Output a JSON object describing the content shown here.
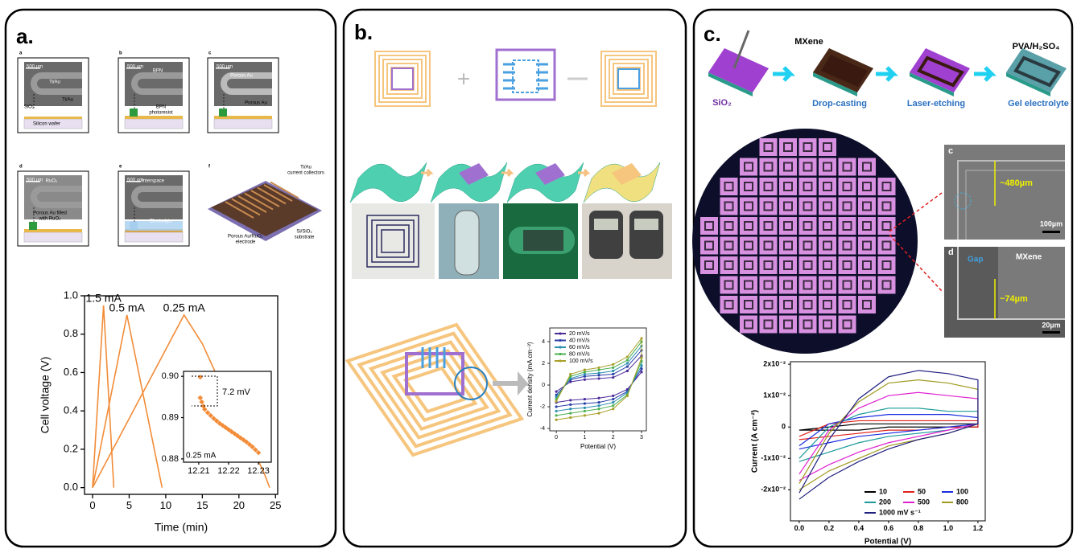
{
  "panels": {
    "a": {
      "label": "a.",
      "texts": [
        "a",
        "b",
        "c",
        "d",
        "e",
        "f",
        "500 µm",
        "Ti/Au",
        "SiO₂",
        "Ti/Au",
        "Silicon wafer",
        "500 µm",
        "BPN",
        "BPN",
        "photoresist",
        "500 µm",
        "Porous Au",
        "Porous Au",
        "500 µm",
        "RuO₂",
        "Porous Au filled",
        "with RuO₂",
        "500 µm",
        "Interspace",
        "Electrolyte",
        "Ti/Au",
        "current collectors",
        "Porous Au/RuO₂",
        "electrode",
        "Si/SiO₂",
        "substrate"
      ]
    },
    "b": {
      "label": "b."
    },
    "c": {
      "label": "c.",
      "texts": [
        "MXene",
        "SiO₂",
        "Drop-casting",
        "Laser-etching",
        "PVA/H₂SO₄",
        "Gel electrolyte",
        "c",
        "~480µm",
        "100µm",
        "d",
        "Gap",
        "MXene",
        "~74µm",
        "20µm"
      ]
    }
  },
  "chart_data": [
    {
      "type": "line",
      "xlabel": "Time (min)",
      "ylabel": "Cell voltage (V)",
      "xlim": [
        -1.1,
        25.3
      ],
      "xticks": [
        0,
        5,
        10,
        15,
        20,
        25
      ],
      "ylim": [
        -0.035,
        1.0
      ],
      "yticks": [
        {
          "value": 0,
          "label": "0.0"
        },
        0.2,
        0.4,
        0.6,
        0.8,
        {
          "value": 1.0,
          "label": "1.0"
        }
      ],
      "series": [
        {
          "name": "1.5 mA",
          "color": "#f28c38",
          "x": [
            0,
            1.5,
            2.9
          ],
          "values": [
            0,
            0.95,
            0
          ]
        },
        {
          "name": "0.5 mA",
          "color": "#f28c38",
          "x": [
            0,
            4.7,
            9.5
          ],
          "values": [
            0,
            0.9,
            0
          ]
        },
        {
          "name": "0.25 mA",
          "color": "#f28c38",
          "x": [
            0,
            12.5,
            15,
            18,
            21,
            23.5,
            24.2
          ],
          "values": [
            0,
            0.9,
            0.75,
            0.5,
            0.28,
            0.07,
            0
          ]
        }
      ]
    },
    {
      "type": "scatter",
      "color": "#f28c38",
      "xlim": [
        12.2049,
        12.2343
      ],
      "xticks": [
        12.21,
        12.22,
        12.23
      ],
      "ylim": [
        0.8792,
        0.9012
      ],
      "yticks": [
        0.88,
        0.89,
        {
          "value": 0.9,
          "label": "0.90"
        }
      ],
      "annotations": [
        "7.2 mV",
        "0.25 mA"
      ],
      "x": [
        12.2105,
        12.2105,
        12.211,
        12.2115,
        12.212,
        12.213,
        12.214,
        12.215,
        12.216,
        12.217,
        12.218,
        12.219,
        12.22,
        12.221,
        12.222,
        12.223,
        12.224,
        12.225,
        12.226,
        12.227,
        12.228,
        12.229,
        12.23
      ],
      "values": [
        0.8998,
        0.8948,
        0.8938,
        0.8928,
        0.892,
        0.8912,
        0.8905,
        0.8898,
        0.8892,
        0.8886,
        0.8881,
        0.8876,
        0.8871,
        0.8866,
        0.8861,
        0.8856,
        0.8851,
        0.8846,
        0.8841,
        0.8835,
        0.8829,
        0.8822,
        0.8815
      ]
    },
    {
      "type": "line",
      "xlabel": "Potential (V)",
      "ylabel": "Current density (mA cm⁻²)",
      "legend": "upper left",
      "markers": true,
      "xlim": [
        -0.23,
        3.17
      ],
      "xticks": [
        0,
        1,
        2,
        3
      ],
      "ylim": [
        -4.22,
        5.26
      ],
      "yticks": [
        -4,
        -2,
        0,
        2,
        4
      ],
      "x": [
        0,
        0.5,
        1,
        1.5,
        2,
        2.5,
        3,
        3,
        2.5,
        2,
        1.5,
        1,
        0.5,
        0
      ],
      "series": [
        {
          "name": "20 mV/s",
          "color": "#4b2a9a",
          "values": [
            -0.6,
            0.3,
            0.5,
            0.6,
            0.7,
            1.3,
            2.7,
            1.2,
            -0.4,
            -1.0,
            -1.2,
            -1.3,
            -1.4,
            -1.6
          ]
        },
        {
          "name": "40 mV/s",
          "color": "#2a3fa8",
          "values": [
            -0.9,
            0.5,
            0.8,
            0.9,
            1.0,
            1.7,
            3.2,
            1.5,
            -0.6,
            -1.3,
            -1.6,
            -1.7,
            -1.8,
            -2.0
          ]
        },
        {
          "name": "60 mV/s",
          "color": "#2b8fb0",
          "values": [
            -1.1,
            0.6,
            1.0,
            1.1,
            1.3,
            2.0,
            3.6,
            1.8,
            -0.7,
            -1.6,
            -1.9,
            -2.1,
            -2.2,
            -2.4
          ]
        },
        {
          "name": "80 mV/s",
          "color": "#4cb050",
          "values": [
            -1.3,
            0.8,
            1.2,
            1.4,
            1.6,
            2.3,
            4.0,
            2.2,
            -0.9,
            -1.9,
            -2.2,
            -2.4,
            -2.6,
            -2.8
          ]
        },
        {
          "name": "100 mV/s",
          "color": "#a8a02a",
          "values": [
            -1.5,
            1.0,
            1.4,
            1.6,
            1.9,
            2.6,
            4.3,
            2.5,
            -1.0,
            -2.2,
            -2.6,
            -2.8,
            -3.0,
            -3.2
          ]
        }
      ]
    },
    {
      "type": "line",
      "xlabel": "Potential (V)",
      "ylabel": "Current (A cm⁻²)",
      "legend": "lower right",
      "xlim": [
        -0.059,
        1.249
      ],
      "xticks": [
        {
          "value": 0,
          "label": "0.0"
        },
        0.2,
        0.4,
        0.6,
        0.8,
        {
          "value": 1.0,
          "label": "1.0"
        },
        1.2
      ],
      "ylim": [
        -0.0299,
        0.0208
      ],
      "yticks": [
        {
          "value": 0.02,
          "label": "2x10⁻²"
        },
        {
          "value": 0.01,
          "label": "1x10⁻²"
        },
        0,
        {
          "value": -0.01,
          "label": "-1x10⁻²"
        },
        {
          "value": -0.02,
          "label": "-2x10⁻²"
        }
      ],
      "x": [
        0,
        0.2,
        0.4,
        0.6,
        0.8,
        1.0,
        1.2,
        1.2,
        1.0,
        0.8,
        0.6,
        0.4,
        0.2,
        0
      ],
      "series": [
        {
          "name": "10",
          "color": "#000000",
          "values": [
            -0.001,
            0,
            0.001,
            0.001,
            0.001,
            0.001,
            0.001,
            0,
            0,
            0,
            0,
            -0.001,
            -0.001,
            -0.001
          ]
        },
        {
          "name": "50",
          "color": "#e0201a",
          "values": [
            -0.003,
            0.001,
            0.002,
            0.002,
            0.002,
            0.002,
            0.002,
            0,
            0,
            -0.001,
            -0.001,
            -0.002,
            -0.003,
            -0.004
          ]
        },
        {
          "name": "100",
          "color": "#1a2ee0",
          "values": [
            -0.006,
            0.001,
            0.003,
            0.004,
            0.004,
            0.004,
            0.003,
            0.001,
            0,
            -0.001,
            -0.002,
            -0.003,
            -0.005,
            -0.007
          ]
        },
        {
          "name": "200",
          "color": "#1a9a9a",
          "values": [
            -0.01,
            0,
            0.004,
            0.006,
            0.006,
            0.005,
            0.005,
            0.001,
            -0.001,
            -0.002,
            -0.003,
            -0.005,
            -0.008,
            -0.011
          ]
        },
        {
          "name": "500",
          "color": "#e020d0",
          "values": [
            -0.015,
            -0.001,
            0.006,
            0.01,
            0.011,
            0.01,
            0.009,
            0.001,
            -0.001,
            -0.003,
            -0.005,
            -0.008,
            -0.012,
            -0.017
          ]
        },
        {
          "name": "800",
          "color": "#a09a20",
          "values": [
            -0.018,
            -0.002,
            0.008,
            0.014,
            0.015,
            0.014,
            0.012,
            0.001,
            -0.002,
            -0.004,
            -0.006,
            -0.01,
            -0.014,
            -0.02
          ]
        },
        {
          "name": "1000 mV s⁻¹",
          "color": "#202080",
          "values": [
            -0.021,
            -0.004,
            0.009,
            0.016,
            0.018,
            0.017,
            0.015,
            0.001,
            -0.002,
            -0.004,
            -0.007,
            -0.011,
            -0.016,
            -0.023
          ]
        }
      ]
    }
  ]
}
